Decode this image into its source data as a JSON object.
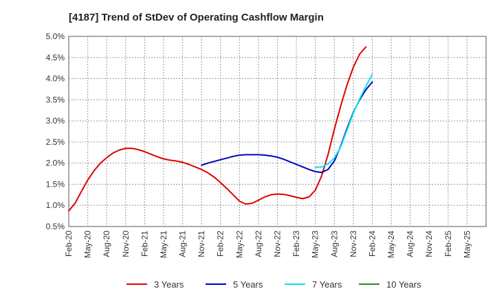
{
  "chart_data": {
    "type": "line",
    "title": "[4187]  Trend of StDev of Operating Cashflow Margin",
    "xlabel": "",
    "ylabel": "",
    "ylim": [
      0.5,
      5.0
    ],
    "y_ticks": [
      "0.5%",
      "1.0%",
      "1.5%",
      "2.0%",
      "2.5%",
      "3.0%",
      "3.5%",
      "4.0%",
      "4.5%",
      "5.0%"
    ],
    "x_ticks": [
      "Feb-20",
      "May-20",
      "Aug-20",
      "Nov-20",
      "Feb-21",
      "May-21",
      "Aug-21",
      "Nov-21",
      "Feb-22",
      "May-22",
      "Aug-22",
      "Nov-22",
      "Feb-23",
      "May-23",
      "Aug-23",
      "Nov-23",
      "Feb-24",
      "May-24",
      "Aug-24",
      "Nov-24",
      "Feb-25",
      "May-25"
    ],
    "grid": true,
    "legend_position": "bottom",
    "series": [
      {
        "name": "3 Years",
        "color": "#dd0000",
        "start_index": 0,
        "values": [
          0.87,
          1.05,
          1.33,
          1.6,
          1.82,
          2.0,
          2.13,
          2.24,
          2.31,
          2.35,
          2.35,
          2.32,
          2.27,
          2.21,
          2.15,
          2.1,
          2.07,
          2.05,
          2.02,
          1.97,
          1.91,
          1.85,
          1.77,
          1.67,
          1.54,
          1.4,
          1.25,
          1.1,
          1.03,
          1.05,
          1.12,
          1.2,
          1.25,
          1.27,
          1.26,
          1.23,
          1.19,
          1.16,
          1.2,
          1.36,
          1.7,
          2.2,
          2.8,
          3.35,
          3.85,
          4.27,
          4.58,
          4.75
        ]
      },
      {
        "name": "5 Years",
        "color": "#0000bb",
        "start_index": 21,
        "values": [
          1.95,
          2.0,
          2.04,
          2.08,
          2.12,
          2.16,
          2.19,
          2.2,
          2.2,
          2.2,
          2.19,
          2.17,
          2.14,
          2.09,
          2.03,
          1.97,
          1.91,
          1.85,
          1.8,
          1.78,
          1.85,
          2.05,
          2.4,
          2.82,
          3.2,
          3.5,
          3.74,
          3.92
        ]
      },
      {
        "name": "7 Years",
        "color": "#00e5ee",
        "start_index": 39,
        "values": [
          1.9,
          1.91,
          1.98,
          2.12,
          2.38,
          2.78,
          3.18,
          3.52,
          3.82,
          4.1
        ]
      },
      {
        "name": "10 Years",
        "color": "#228b22",
        "start_index": 0,
        "values": []
      }
    ]
  }
}
